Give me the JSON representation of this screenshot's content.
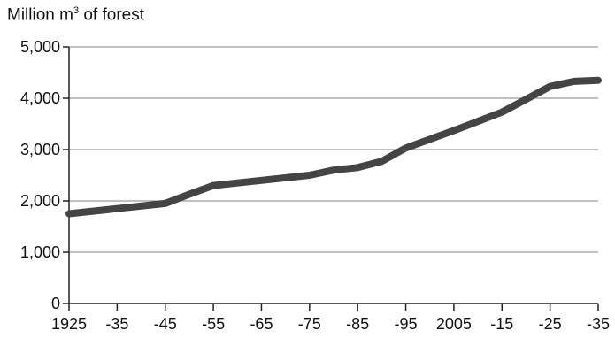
{
  "chart_data": {
    "type": "line",
    "ylabel_main": "Million m",
    "ylabel_sup": "3",
    "ylabel_tail": " of forest",
    "x_tick_labels": [
      "1925",
      "-35",
      "-45",
      "-55",
      "-65",
      "-75",
      "-85",
      "-95",
      "2005",
      "-15",
      "-25",
      "-35"
    ],
    "x_tick_years": [
      1925,
      1935,
      1945,
      1955,
      1965,
      1975,
      1985,
      1995,
      2005,
      2015,
      2025,
      2035
    ],
    "y_tick_labels": [
      "0",
      "1,000",
      "2,000",
      "3,000",
      "4,000",
      "5,000"
    ],
    "y_tick_values": [
      0,
      1000,
      2000,
      3000,
      4000,
      5000
    ],
    "xlim": [
      1925,
      2035
    ],
    "ylim": [
      0,
      5000
    ],
    "grid": "horizontal",
    "series": [
      {
        "color": "#444444",
        "x": [
          1925,
          1935,
          1945,
          1950,
          1955,
          1965,
          1975,
          1980,
          1985,
          1990,
          1995,
          2000,
          2005,
          2010,
          2015,
          2020,
          2025,
          2030,
          2035
        ],
        "y": [
          1750,
          1850,
          1950,
          2130,
          2300,
          2400,
          2500,
          2600,
          2650,
          2770,
          3030,
          3200,
          3370,
          3550,
          3730,
          3980,
          4230,
          4330,
          4350
        ]
      }
    ]
  }
}
